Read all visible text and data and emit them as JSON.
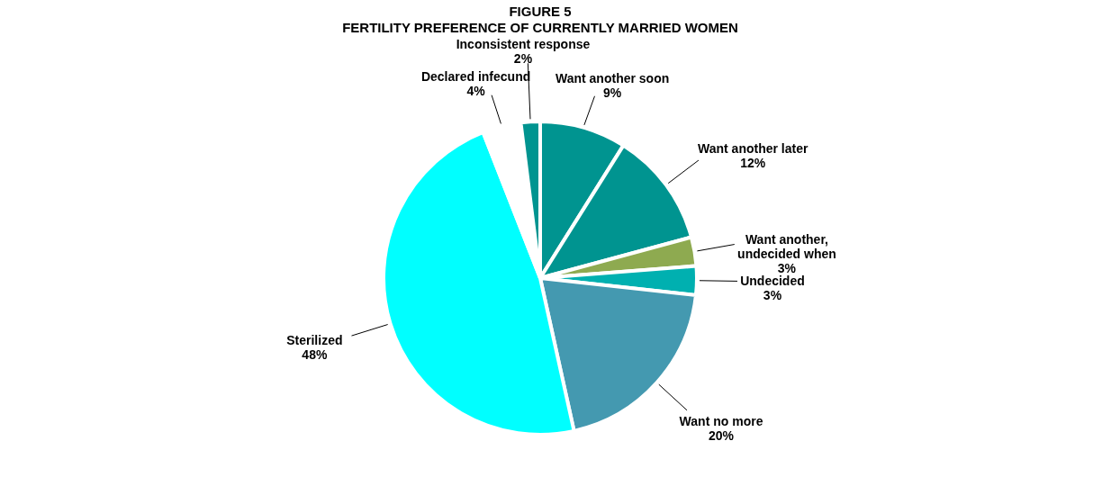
{
  "chart_data": {
    "type": "pie",
    "title": "FIGURE 5",
    "subtitle": "FERTILITY PREFERENCE OF CURRENTLY MARRIED WOMEN",
    "categories": [
      "Want another soon",
      "Want another later",
      "Want another, undecided when",
      "Undecided",
      "Want no more",
      "Sterilized",
      "Declared infecund",
      "Inconsistent response"
    ],
    "values": [
      9,
      12,
      3,
      3,
      20,
      48,
      4,
      2
    ],
    "value_labels": [
      "9%",
      "12%",
      "3%",
      "3%",
      "20%",
      "48%",
      "4%",
      "2%"
    ],
    "colors": [
      "#009490",
      "#009490",
      "#8eaa50",
      "#00b0b0",
      "#4499b0",
      "#00ffff",
      "#ffffff",
      "#009490"
    ],
    "legend": false
  }
}
